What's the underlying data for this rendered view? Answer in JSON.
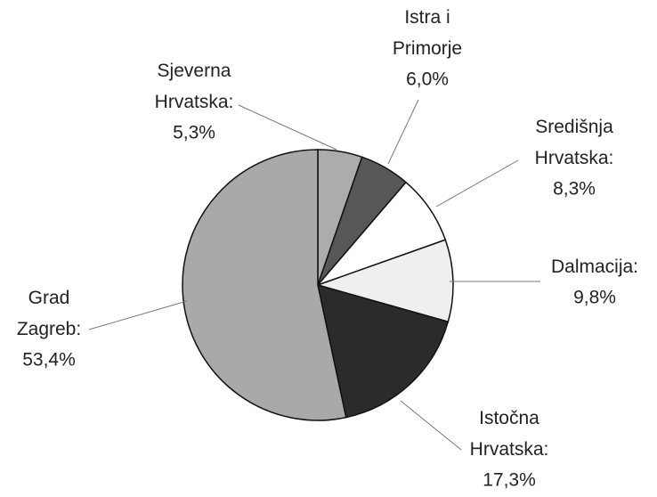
{
  "chart_data": {
    "type": "pie",
    "categories": [
      "Sjeverna\nHrvatska:",
      "Istra i\nPrimorje",
      "Središnja\nHrvatska:",
      "Dalmacija:",
      "Istočna\nHrvatska:",
      "Grad\nZagreb:"
    ],
    "values": [
      5.3,
      6.0,
      8.3,
      9.8,
      17.3,
      53.4
    ],
    "value_labels": [
      "5,3%",
      "6,0%",
      "8,3%",
      "9,8%",
      "17,3%",
      "53,4%"
    ],
    "colors": [
      "#acacac",
      "#575757",
      "#ffffff",
      "#efefef",
      "#2b2b2b",
      "#a9a9a9"
    ]
  }
}
